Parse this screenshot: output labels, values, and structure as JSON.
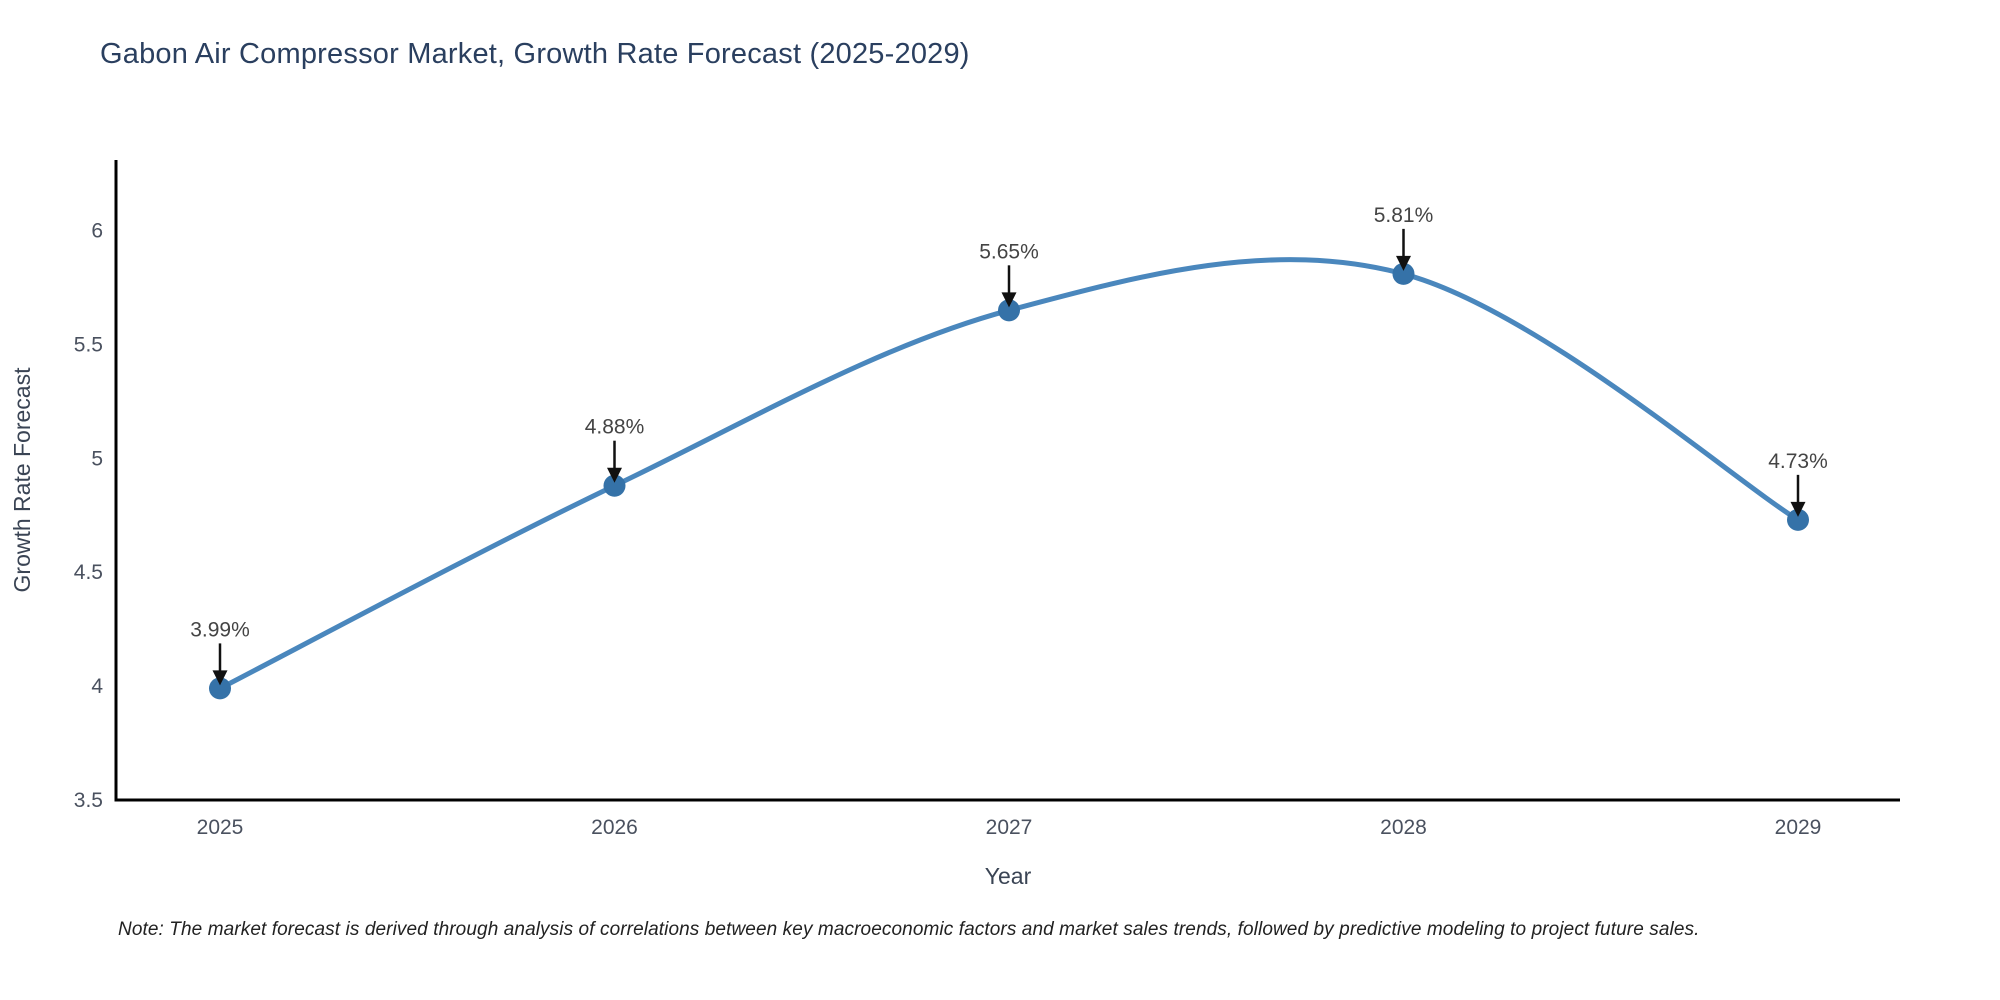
{
  "chart_data": {
    "type": "line",
    "line_shape": "spline",
    "title": "Gabon Air Compressor Market, Growth Rate Forecast (2025-2029)",
    "xlabel": "Year",
    "ylabel": "Growth Rate Forecast",
    "x": [
      "2025",
      "2026",
      "2027",
      "2028",
      "2029"
    ],
    "values": [
      3.99,
      4.88,
      5.65,
      5.81,
      4.73
    ],
    "point_labels": [
      "3.99%",
      "4.88%",
      "5.65%",
      "5.81%",
      "4.73%"
    ],
    "yticks": [
      3.5,
      4,
      4.5,
      5,
      5.5,
      6
    ],
    "ytick_labels": [
      "3.5",
      "4",
      "4.5",
      "5",
      "5.5",
      "6"
    ],
    "ylim": [
      3.5,
      6.31
    ],
    "grid": false,
    "legend": false,
    "marker_symbol": "circle",
    "annotation_arrow": "down-arrow",
    "colors": {
      "line": "#4a87bd",
      "marker": "#3572a8",
      "spine": "#000000",
      "tick_label": "#4a515f",
      "axis_title": "#3a4454",
      "title": "#2a3f5f",
      "annotation_text": "#444444",
      "arrow": "#111111",
      "note": "#222222",
      "background": "#ffffff"
    }
  },
  "footnote": "Note: The market forecast is derived through analysis of correlations between key macroeconomic factors and market sales trends, followed by predictive modeling to project future sales."
}
